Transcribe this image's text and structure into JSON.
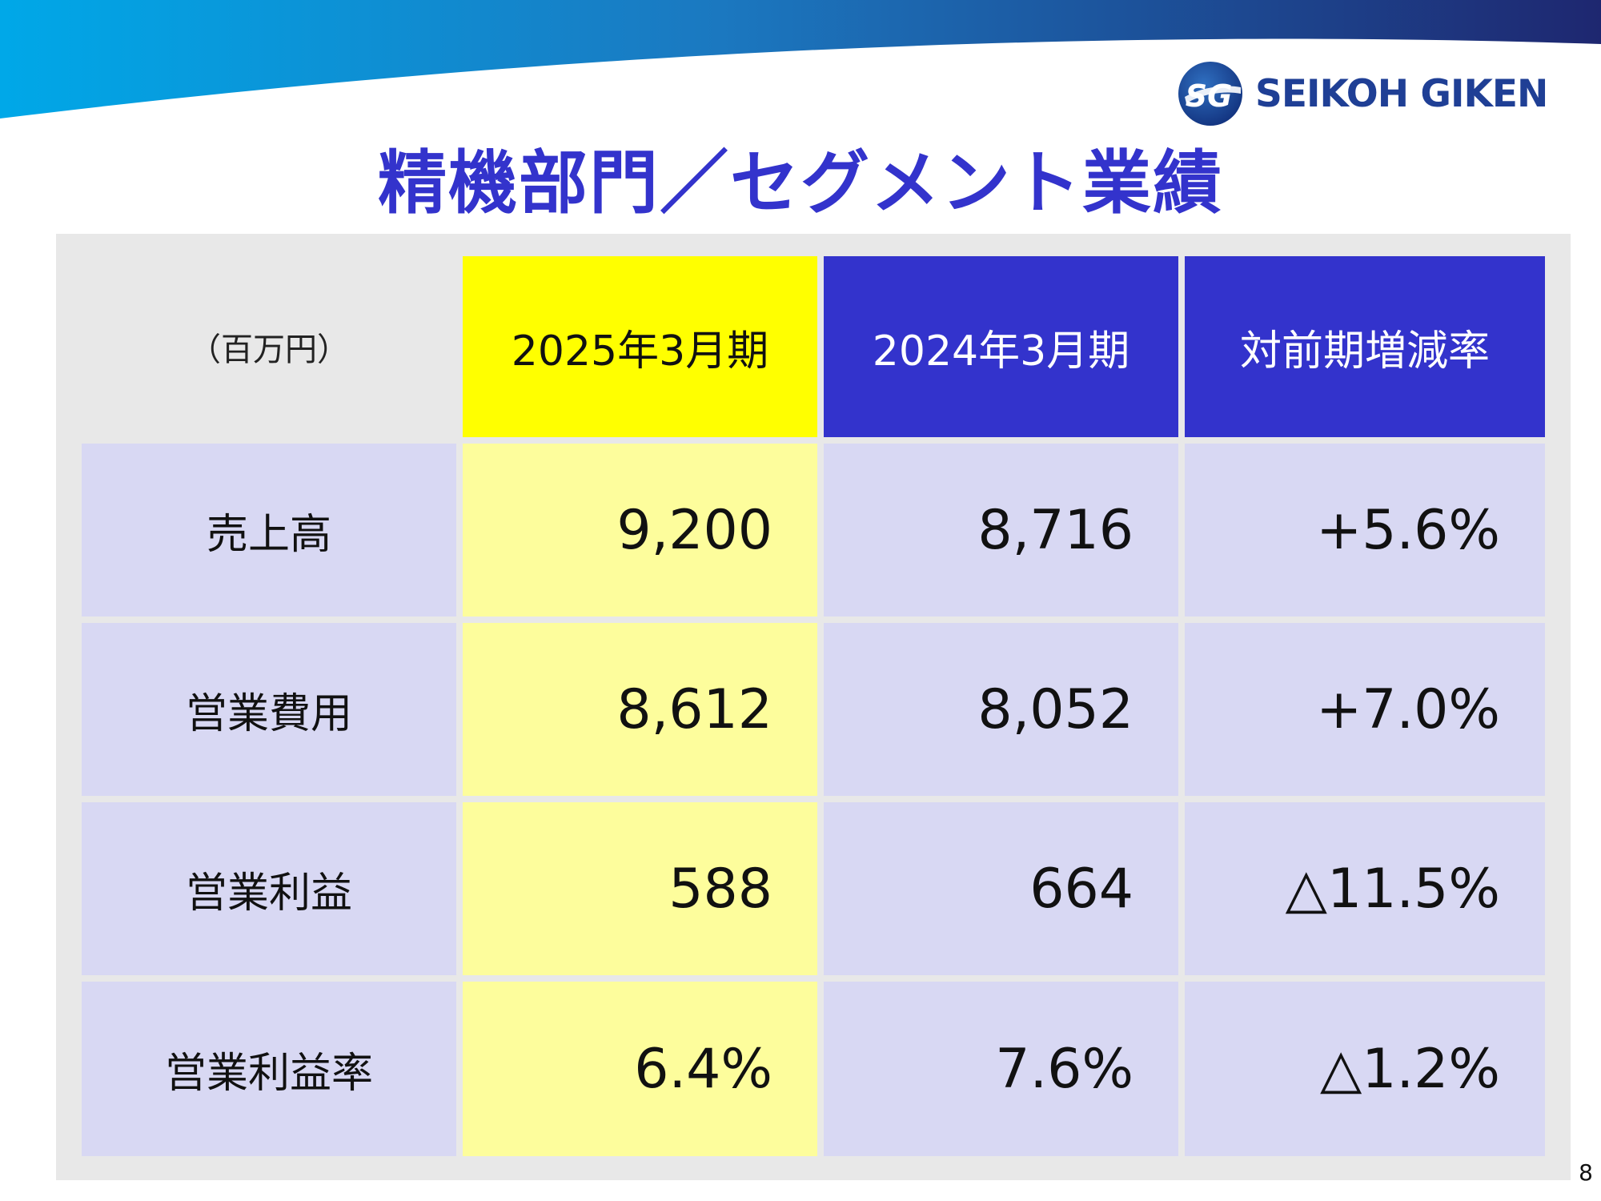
{
  "brand": {
    "name": "SEIKOH GIKEN",
    "mark_letters": "SG"
  },
  "title": "精機部門／セグメント業績",
  "table": {
    "unit_label": "（百万円）",
    "headers": {
      "current": "2025年3月期",
      "previous": "2024年3月期",
      "change": "対前期増減率"
    },
    "rows": [
      {
        "label": "売上高",
        "current": "9,200",
        "previous": "8,716",
        "change": "+5.6%"
      },
      {
        "label": "営業費用",
        "current": "8,612",
        "previous": "8,052",
        "change": "+7.0%"
      },
      {
        "label": "営業利益",
        "current": "588",
        "previous": "664",
        "change": "△11.5%"
      },
      {
        "label": "営業利益率",
        "current": "6.4%",
        "previous": "7.6%",
        "change": "△1.2%"
      }
    ]
  },
  "page_number": "8",
  "colors": {
    "title": "#3333cc",
    "current_header": "#ffff00",
    "current_cells": "#fdfd9c",
    "previous_header": "#3333cc",
    "body_cells": "#d8d8f3",
    "panel": "#e8e8e8",
    "brand_text": "#1f3f95"
  }
}
